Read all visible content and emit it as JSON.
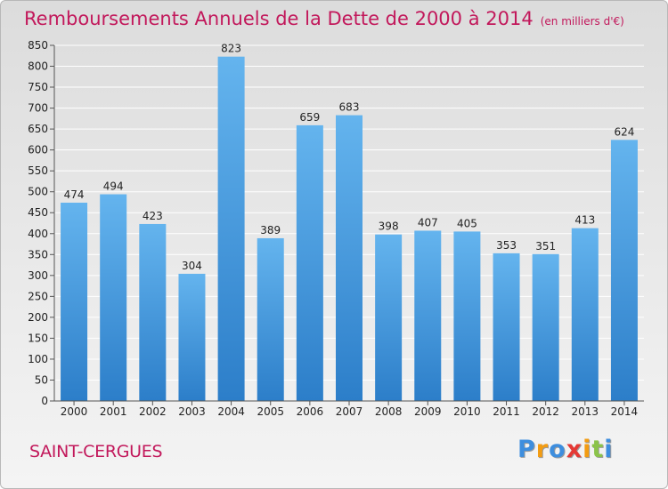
{
  "title": "Remboursements Annuels de la Dette de 2000 à 2014",
  "unit_note": "(en milliers d'€)",
  "commune": "SAINT-CERGUES",
  "brand": {
    "letters": [
      "P",
      "r",
      "o",
      "x",
      "i",
      "t",
      "i"
    ],
    "colors": [
      "#3e8ede",
      "#f39c12",
      "#3e8ede",
      "#e53935",
      "#f39c12",
      "#8bc34a",
      "#3e8ede"
    ]
  },
  "colors": {
    "title": "#c2185b",
    "bar_light": "#64b4ee",
    "bar_dark": "#2c7ec9",
    "grid": "#ffffff",
    "axis": "#555555",
    "text": "#222222"
  },
  "chart_data": {
    "type": "bar",
    "categories": [
      "2000",
      "2001",
      "2002",
      "2003",
      "2004",
      "2005",
      "2006",
      "2007",
      "2008",
      "2009",
      "2010",
      "2011",
      "2012",
      "2013",
      "2014"
    ],
    "values": [
      474,
      494,
      423,
      304,
      823,
      389,
      659,
      683,
      398,
      407,
      405,
      353,
      351,
      413,
      624
    ],
    "data_labels": [
      "474",
      "494",
      "423",
      "304",
      "823",
      "389",
      "659",
      "683",
      "398",
      "407",
      "405",
      "353",
      "351",
      "413",
      "624"
    ],
    "ylim": [
      0,
      850
    ],
    "yticks": [
      0,
      50,
      100,
      150,
      200,
      250,
      300,
      350,
      400,
      450,
      500,
      550,
      600,
      650,
      700,
      750,
      800,
      850
    ],
    "grid": true,
    "legend": "none"
  }
}
